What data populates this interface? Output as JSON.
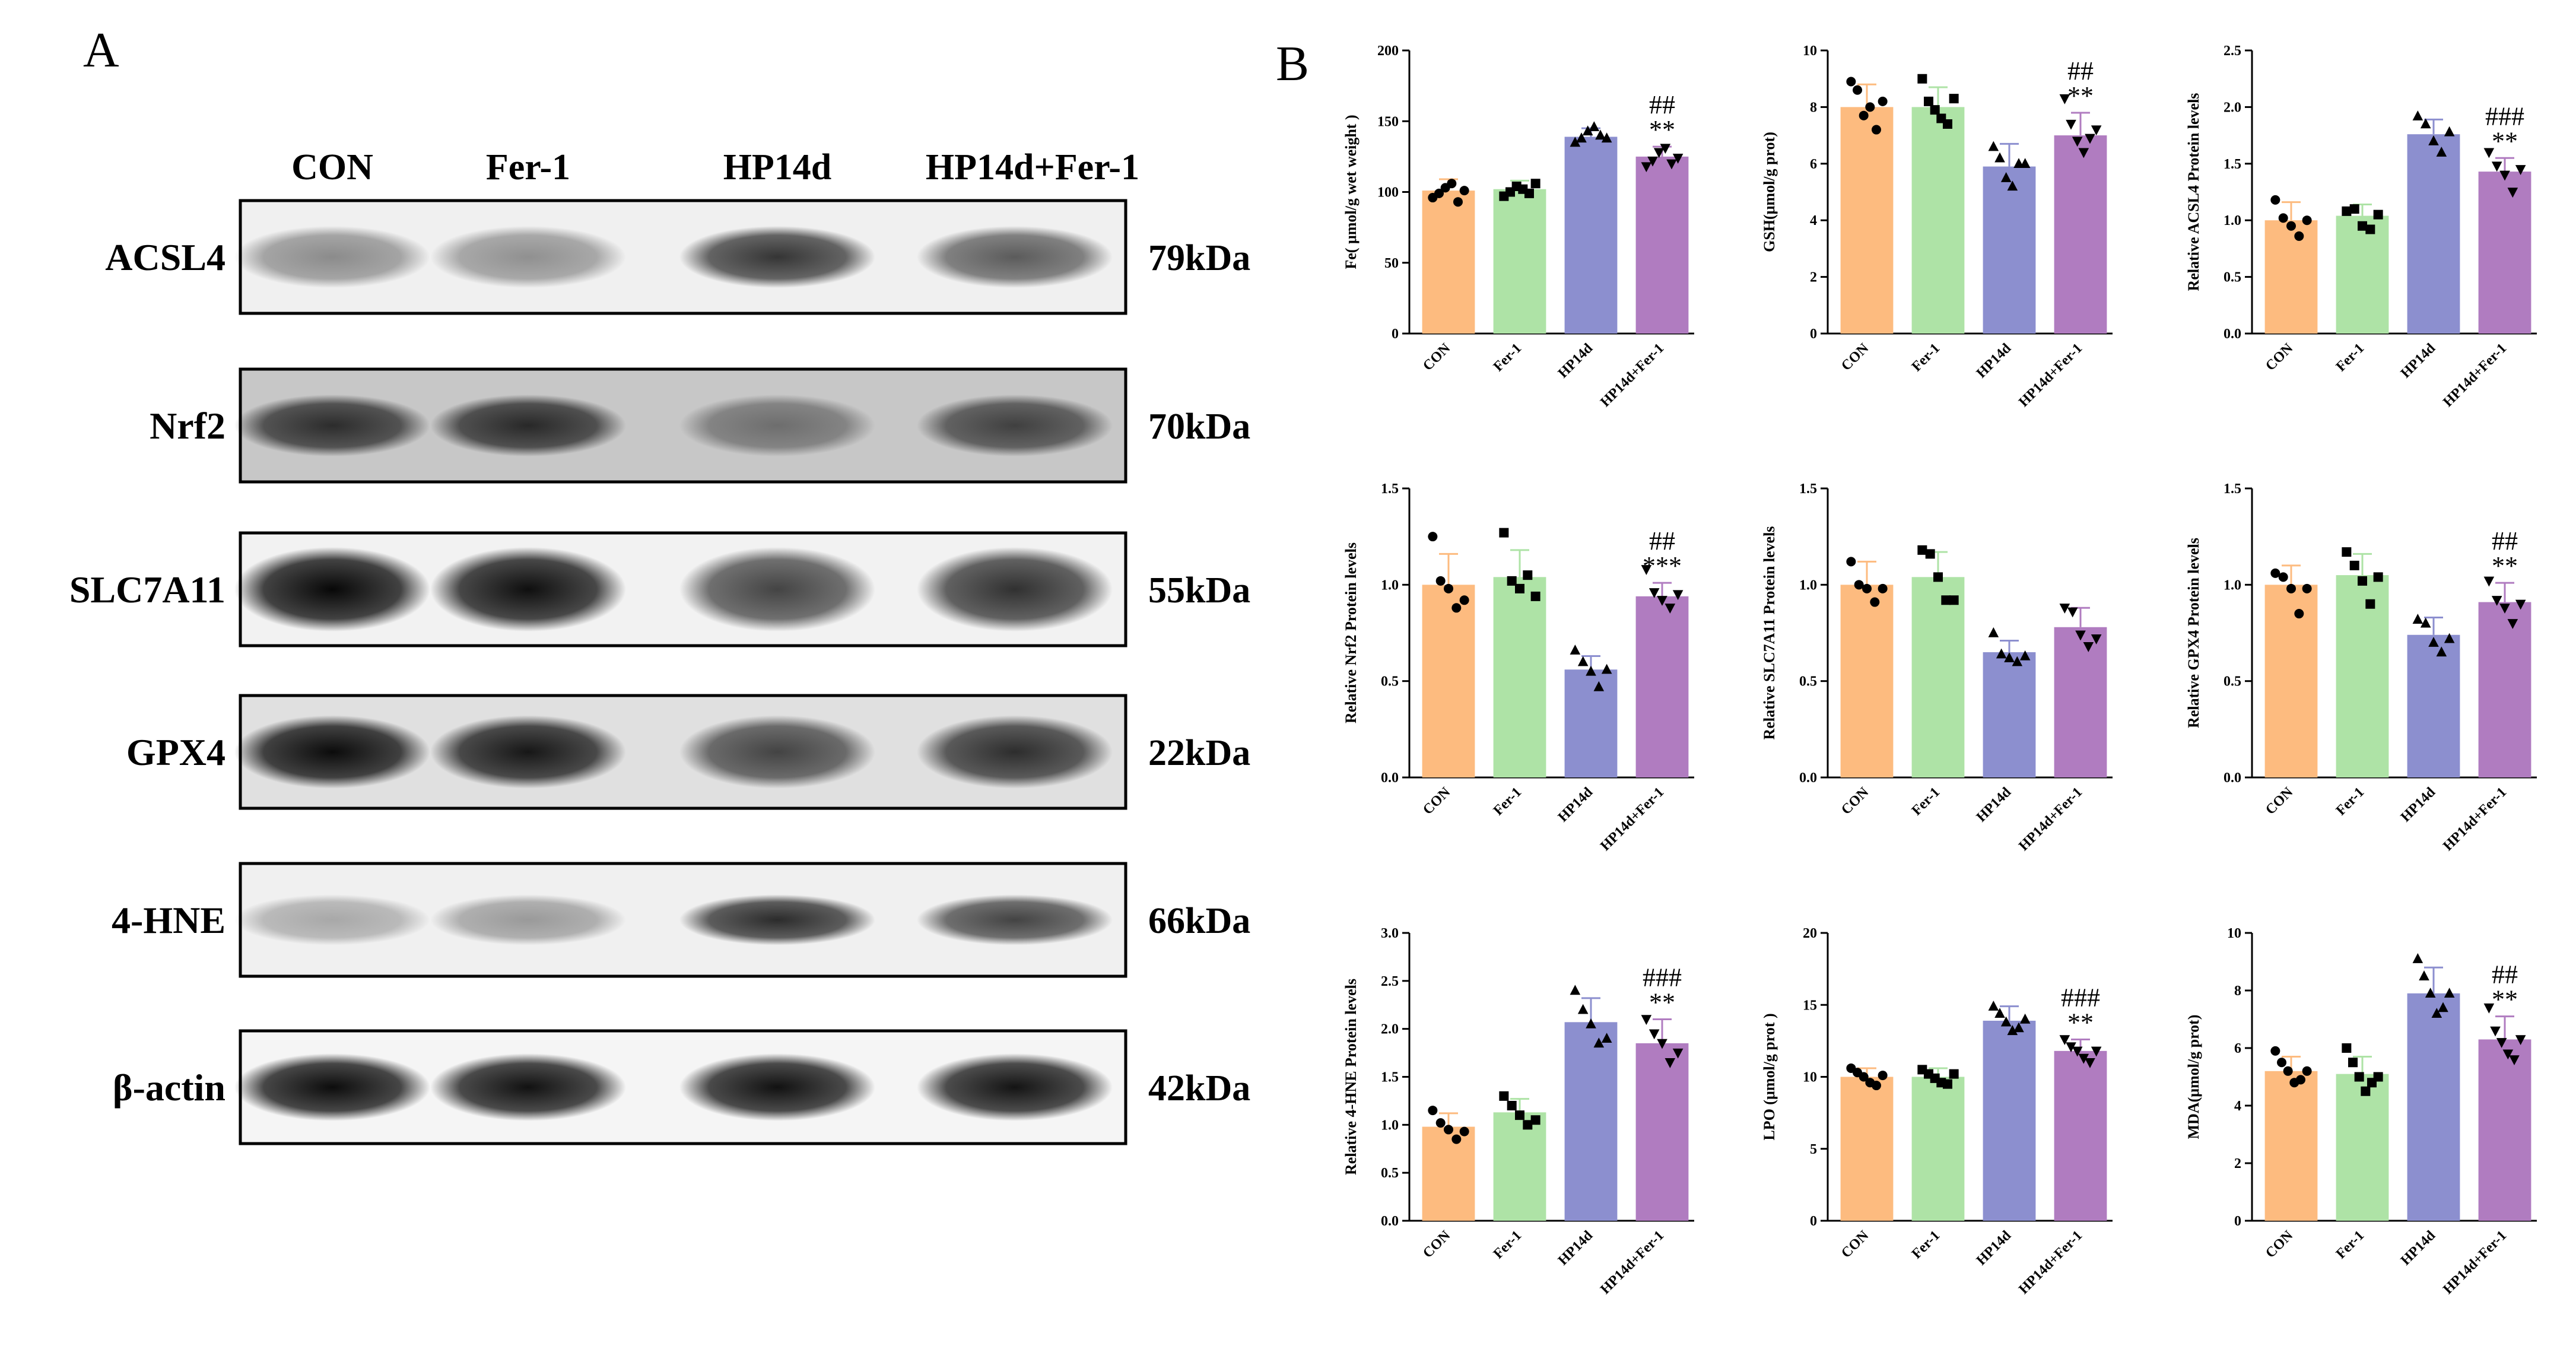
{
  "panel_a": {
    "letter": "A",
    "lanes": [
      "CON",
      "Fer-1",
      "HP14d",
      "HP14d+Fer-1"
    ],
    "blots": [
      {
        "protein": "ACSL4",
        "kda": "79kDa",
        "intensity": [
          0.42,
          0.4,
          0.78,
          0.62
        ],
        "haze": 0.06,
        "thickness": 0.55
      },
      {
        "protein": "Nrf2",
        "kda": "70kDa",
        "intensity": [
          0.78,
          0.8,
          0.45,
          0.68
        ],
        "haze": 0.22,
        "thickness": 0.55
      },
      {
        "protein": "SLC7A11",
        "kda": "55kDa",
        "intensity": [
          0.97,
          0.94,
          0.72,
          0.8
        ],
        "haze": 0.05,
        "thickness": 0.75
      },
      {
        "protein": "GPX4",
        "kda": "22kDa",
        "intensity": [
          0.95,
          0.9,
          0.7,
          0.8
        ],
        "haze": 0.12,
        "thickness": 0.65
      },
      {
        "protein": "4-HNE",
        "kda": "66kDa",
        "intensity": [
          0.3,
          0.36,
          0.82,
          0.72
        ],
        "haze": 0.06,
        "thickness": 0.45
      },
      {
        "protein": "β-actin",
        "kda": "42kDa",
        "intensity": [
          0.95,
          0.93,
          0.93,
          0.92
        ],
        "haze": 0.04,
        "thickness": 0.6
      }
    ]
  },
  "panel_b": {
    "letter": "B"
  },
  "colors": {
    "CON": "#FDBB7F",
    "Fer-1": "#AEE3A6",
    "HP14d": "#8C8FCF",
    "HP14d+Fer-1": "#B07CC0",
    "error": "#000000"
  },
  "chart_data": [
    {
      "type": "bar",
      "categories": [
        "CON",
        "Fer-1",
        "HP14d",
        "HP14d+Fer-1"
      ],
      "values": [
        101,
        102,
        139,
        125
      ],
      "errors": [
        8,
        6,
        6,
        7
      ],
      "ylabel": "Fe( μmol/g wet weight )",
      "ylim": [
        0,
        200
      ],
      "yticks": [
        "0",
        "50",
        "100",
        "150",
        "200"
      ],
      "markers": [
        "circle",
        "square",
        "triangle",
        "triangle-down"
      ],
      "points": [
        [
          96,
          99,
          103,
          106,
          93,
          101
        ],
        [
          97,
          100,
          104,
          102,
          99,
          106
        ],
        [
          135,
          138,
          143,
          146,
          140,
          138
        ],
        [
          118,
          122,
          128,
          131,
          120,
          124
        ]
      ],
      "sig_top": "##",
      "sig_bottom": "**"
    },
    {
      "type": "bar",
      "categories": [
        "CON",
        "Fer-1",
        "HP14d",
        "HP14d+Fer-1"
      ],
      "values": [
        8.0,
        8.0,
        5.9,
        7.0
      ],
      "errors": [
        0.8,
        0.7,
        0.8,
        0.8
      ],
      "ylabel": "GSH(μmol/g prot)",
      "ylim": [
        0,
        10
      ],
      "yticks": [
        "0",
        "2",
        "4",
        "6",
        "8",
        "10"
      ],
      "markers": [
        "circle",
        "square",
        "triangle",
        "triangle-down"
      ],
      "points": [
        [
          8.9,
          8.6,
          7.7,
          8.0,
          7.2,
          8.2
        ],
        [
          9.0,
          8.2,
          7.9,
          7.6,
          7.4,
          8.3
        ],
        [
          6.6,
          6.2,
          5.5,
          5.2,
          6.0,
          6.0
        ],
        [
          8.3,
          7.4,
          6.8,
          6.4,
          6.9,
          7.2
        ]
      ],
      "sig_top": "##",
      "sig_bottom": "**"
    },
    {
      "type": "bar",
      "categories": [
        "CON",
        "Fer-1",
        "HP14d",
        "HP14d+Fer-1"
      ],
      "values": [
        1.0,
        1.04,
        1.76,
        1.43
      ],
      "errors": [
        0.16,
        0.1,
        0.13,
        0.12
      ],
      "ylabel": "Relative ACSL4 Protein levels",
      "ylim": [
        0,
        2.5
      ],
      "yticks": [
        "0.0",
        "0.5",
        "1.0",
        "1.5",
        "2.0",
        "2.5"
      ],
      "markers": [
        "circle",
        "square",
        "triangle",
        "triangle-down"
      ],
      "points": [
        [
          1.18,
          1.02,
          0.95,
          0.86,
          1.0
        ],
        [
          1.08,
          1.1,
          0.95,
          0.92,
          1.05
        ],
        [
          1.92,
          1.85,
          1.7,
          1.6,
          1.78
        ],
        [
          1.6,
          1.48,
          1.4,
          1.25,
          1.45
        ]
      ],
      "sig_top": "###",
      "sig_bottom": "**"
    },
    {
      "type": "bar",
      "categories": [
        "CON",
        "Fer-1",
        "HP14d",
        "HP14d+Fer-1"
      ],
      "values": [
        1.0,
        1.04,
        0.56,
        0.94
      ],
      "errors": [
        0.16,
        0.14,
        0.07,
        0.07
      ],
      "ylabel": "Relative Nrf2 Protein levels",
      "ylim": [
        0,
        1.5
      ],
      "yticks": [
        "0.0",
        "0.5",
        "1.0",
        "1.5"
      ],
      "markers": [
        "circle",
        "square",
        "triangle",
        "triangle-down"
      ],
      "points": [
        [
          1.25,
          1.02,
          0.98,
          0.88,
          0.92
        ],
        [
          1.27,
          1.02,
          0.98,
          1.05,
          0.94
        ],
        [
          0.66,
          0.6,
          0.55,
          0.47,
          0.56
        ],
        [
          1.08,
          0.96,
          0.92,
          0.88,
          0.95
        ]
      ],
      "sig_top": "##",
      "sig_bottom": "***"
    },
    {
      "type": "bar",
      "categories": [
        "CON",
        "Fer-1",
        "HP14d",
        "HP14d+Fer-1"
      ],
      "values": [
        1.0,
        1.04,
        0.65,
        0.78
      ],
      "errors": [
        0.12,
        0.13,
        0.06,
        0.1
      ],
      "ylabel": "Relative SLC7A11 Protein levels",
      "ylim": [
        0,
        1.5
      ],
      "yticks": [
        "0.0",
        "0.5",
        "1.0",
        "1.5"
      ],
      "markers": [
        "circle",
        "square",
        "triangle",
        "triangle-down"
      ],
      "points": [
        [
          1.12,
          1.0,
          0.98,
          0.91,
          0.98
        ],
        [
          1.18,
          1.16,
          1.04,
          0.92,
          0.92
        ],
        [
          0.75,
          0.64,
          0.62,
          0.6,
          0.63
        ],
        [
          0.88,
          0.86,
          0.74,
          0.68,
          0.72
        ]
      ],
      "sig_top": "",
      "sig_bottom": ""
    },
    {
      "type": "bar",
      "categories": [
        "CON",
        "Fer-1",
        "HP14d",
        "HP14d+Fer-1"
      ],
      "values": [
        1.0,
        1.05,
        0.74,
        0.91
      ],
      "errors": [
        0.1,
        0.11,
        0.09,
        0.1
      ],
      "ylabel": "Relative GPX4 Protein levels",
      "ylim": [
        0,
        1.5
      ],
      "yticks": [
        "0.0",
        "0.5",
        "1.0",
        "1.5"
      ],
      "markers": [
        "circle",
        "square",
        "triangle",
        "triangle-down"
      ],
      "points": [
        [
          1.06,
          1.04,
          0.98,
          0.85,
          0.98
        ],
        [
          1.17,
          1.1,
          1.02,
          0.9,
          1.04
        ],
        [
          0.82,
          0.8,
          0.7,
          0.65,
          0.72
        ],
        [
          1.02,
          0.92,
          0.88,
          0.8,
          0.9
        ]
      ],
      "sig_top": "##",
      "sig_bottom": "**"
    },
    {
      "type": "bar",
      "categories": [
        "CON",
        "Fer-1",
        "HP14d",
        "HP14d+Fer-1"
      ],
      "values": [
        0.98,
        1.13,
        2.07,
        1.85
      ],
      "errors": [
        0.14,
        0.14,
        0.25,
        0.25
      ],
      "ylabel": "Relative 4-HNE Protein levels",
      "ylim": [
        0,
        3.0
      ],
      "yticks": [
        "0.0",
        "0.5",
        "1.0",
        "1.5",
        "2.0",
        "2.5",
        "3.0"
      ],
      "markers": [
        "circle",
        "square",
        "triangle",
        "triangle-down"
      ],
      "points": [
        [
          1.15,
          1.02,
          0.95,
          0.85,
          0.93
        ],
        [
          1.3,
          1.2,
          1.1,
          1.0,
          1.05
        ],
        [
          2.4,
          2.2,
          2.05,
          1.85,
          1.9
        ],
        [
          2.1,
          1.95,
          1.85,
          1.65,
          1.75
        ]
      ],
      "sig_top": "###",
      "sig_bottom": "**"
    },
    {
      "type": "bar",
      "categories": [
        "CON",
        "Fer-1",
        "HP14d",
        "HP14d+Fer-1"
      ],
      "values": [
        10.0,
        10.0,
        13.9,
        11.8
      ],
      "errors": [
        0.6,
        0.6,
        1.0,
        0.8
      ],
      "ylabel": "LPO (μmol/g prot )",
      "ylim": [
        0,
        20
      ],
      "yticks": [
        "0",
        "5",
        "10",
        "15",
        "20"
      ],
      "markers": [
        "circle",
        "square",
        "triangle",
        "triangle-down"
      ],
      "points": [
        [
          10.6,
          10.3,
          10.0,
          9.6,
          9.4,
          10.1
        ],
        [
          10.5,
          10.2,
          9.9,
          9.6,
          9.5,
          10.2
        ],
        [
          14.9,
          14.4,
          13.8,
          13.2,
          13.4,
          14.0
        ],
        [
          12.6,
          12.1,
          11.8,
          11.3,
          11.0,
          11.8
        ]
      ],
      "sig_top": "###",
      "sig_bottom": "**"
    },
    {
      "type": "bar",
      "categories": [
        "CON",
        "Fer-1",
        "HP14d",
        "HP14d+Fer-1"
      ],
      "values": [
        5.2,
        5.1,
        7.9,
        6.3
      ],
      "errors": [
        0.5,
        0.6,
        0.9,
        0.8
      ],
      "ylabel": "MDA(μmol/g prot)",
      "ylim": [
        0,
        10
      ],
      "yticks": [
        "0",
        "2",
        "4",
        "6",
        "8",
        "10"
      ],
      "markers": [
        "circle",
        "square",
        "triangle",
        "triangle-down"
      ],
      "points": [
        [
          5.9,
          5.5,
          5.2,
          4.8,
          4.9,
          5.2
        ],
        [
          6.0,
          5.5,
          5.0,
          4.5,
          4.8,
          5.0
        ],
        [
          9.1,
          8.5,
          7.9,
          7.2,
          7.4,
          7.9
        ],
        [
          7.4,
          6.6,
          6.2,
          5.8,
          5.6,
          6.3
        ]
      ],
      "sig_top": "##",
      "sig_bottom": "**"
    }
  ]
}
